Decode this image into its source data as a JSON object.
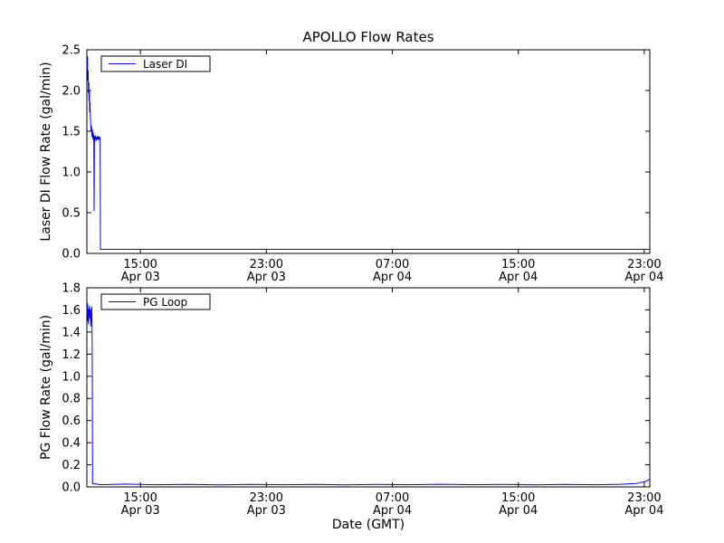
{
  "figure": {
    "background": "#ffffff",
    "axis_color": "#000000",
    "series_color": "#0000ff"
  },
  "chart_data": [
    {
      "type": "line",
      "title": "APOLLO Flow Rates",
      "ylabel": "Laser DI Flow Rate (gal/min)",
      "xlabel": "",
      "ylim": [
        0.0,
        2.5
      ],
      "yticks": [
        "0.0",
        "0.5",
        "1.0",
        "1.5",
        "2.0",
        "2.5"
      ],
      "x_unit": "hours since Apr 03 00:00 GMT",
      "xlim": [
        11.6,
        47.35
      ],
      "xticks": [
        {
          "x": 15,
          "time": "15:00",
          "date": "Apr 03"
        },
        {
          "x": 23,
          "time": "23:00",
          "date": "Apr 03"
        },
        {
          "x": 31,
          "time": "07:00",
          "date": "Apr 04"
        },
        {
          "x": 39,
          "time": "15:00",
          "date": "Apr 04"
        },
        {
          "x": 47,
          "time": "23:00",
          "date": "Apr 04"
        }
      ],
      "grid": false,
      "legend": {
        "label": "Laser DI",
        "position": "upper left"
      },
      "series": [
        {
          "name": "Laser DI",
          "color": "#0000ff",
          "points": [
            [
              11.6,
              2.37
            ],
            [
              11.62,
              2.28
            ],
            [
              11.64,
              2.42
            ],
            [
              11.66,
              2.12
            ],
            [
              11.68,
              2.25
            ],
            [
              11.7,
              1.97
            ],
            [
              11.72,
              2.1
            ],
            [
              11.74,
              1.87
            ],
            [
              11.76,
              1.99
            ],
            [
              11.78,
              1.73
            ],
            [
              11.8,
              1.86
            ],
            [
              11.83,
              1.63
            ],
            [
              11.86,
              1.5
            ],
            [
              11.89,
              1.57
            ],
            [
              11.92,
              1.43
            ],
            [
              11.95,
              1.52
            ],
            [
              11.98,
              1.4
            ],
            [
              12.01,
              1.48
            ],
            [
              12.04,
              1.38
            ],
            [
              12.06,
              0.52
            ],
            [
              12.08,
              1.44
            ],
            [
              12.11,
              1.4
            ],
            [
              12.14,
              1.45
            ],
            [
              12.17,
              1.38
            ],
            [
              12.2,
              1.43
            ],
            [
              12.24,
              1.4
            ],
            [
              12.28,
              1.44
            ],
            [
              12.32,
              1.39
            ],
            [
              12.36,
              1.43
            ],
            [
              12.4,
              1.41
            ],
            [
              12.44,
              1.42
            ],
            [
              12.46,
              0.05
            ],
            [
              13.0,
              0.05
            ],
            [
              16.0,
              0.05
            ],
            [
              20.0,
              0.05
            ],
            [
              24.0,
              0.05
            ],
            [
              28.0,
              0.05
            ],
            [
              32.0,
              0.05
            ],
            [
              36.0,
              0.05
            ],
            [
              40.0,
              0.05
            ],
            [
              44.0,
              0.05
            ],
            [
              47.35,
              0.05
            ]
          ]
        }
      ]
    },
    {
      "type": "line",
      "title": "",
      "ylabel": "PG Flow Rate (gal/min)",
      "xlabel": "Date (GMT)",
      "ylim": [
        0.0,
        1.8
      ],
      "yticks": [
        "0.0",
        "0.2",
        "0.4",
        "0.6",
        "0.8",
        "1.0",
        "1.2",
        "1.4",
        "1.6",
        "1.8"
      ],
      "x_unit": "hours since Apr 03 00:00 GMT",
      "xlim": [
        11.6,
        47.35
      ],
      "xticks": [
        {
          "x": 15,
          "time": "15:00",
          "date": "Apr 03"
        },
        {
          "x": 23,
          "time": "23:00",
          "date": "Apr 03"
        },
        {
          "x": 31,
          "time": "07:00",
          "date": "Apr 04"
        },
        {
          "x": 39,
          "time": "15:00",
          "date": "Apr 04"
        },
        {
          "x": 47,
          "time": "23:00",
          "date": "Apr 04"
        }
      ],
      "grid": false,
      "legend": {
        "label": "PG Loop",
        "position": "upper left"
      },
      "series": [
        {
          "name": "PG Loop",
          "color": "#0000ff",
          "points": [
            [
              11.6,
              1.62
            ],
            [
              11.62,
              1.55
            ],
            [
              11.64,
              1.66
            ],
            [
              11.66,
              1.5
            ],
            [
              11.68,
              1.61
            ],
            [
              11.7,
              1.47
            ],
            [
              11.73,
              1.58
            ],
            [
              11.76,
              1.64
            ],
            [
              11.79,
              1.52
            ],
            [
              11.82,
              1.6
            ],
            [
              11.85,
              1.45
            ],
            [
              11.88,
              1.57
            ],
            [
              11.91,
              1.63
            ],
            [
              11.94,
              1.28
            ],
            [
              11.96,
              0.03
            ],
            [
              12.5,
              0.02
            ],
            [
              14.0,
              0.025
            ],
            [
              16.0,
              0.02
            ],
            [
              18.0,
              0.022
            ],
            [
              20.0,
              0.018
            ],
            [
              22.0,
              0.022
            ],
            [
              24.0,
              0.02
            ],
            [
              26.0,
              0.023
            ],
            [
              28.0,
              0.019
            ],
            [
              30.0,
              0.022
            ],
            [
              32.0,
              0.02
            ],
            [
              34.0,
              0.024
            ],
            [
              36.0,
              0.02
            ],
            [
              38.0,
              0.022
            ],
            [
              40.0,
              0.019
            ],
            [
              42.0,
              0.023
            ],
            [
              44.0,
              0.02
            ],
            [
              45.5,
              0.024
            ],
            [
              46.5,
              0.03
            ],
            [
              47.1,
              0.05
            ],
            [
              47.35,
              0.07
            ]
          ]
        }
      ]
    }
  ]
}
